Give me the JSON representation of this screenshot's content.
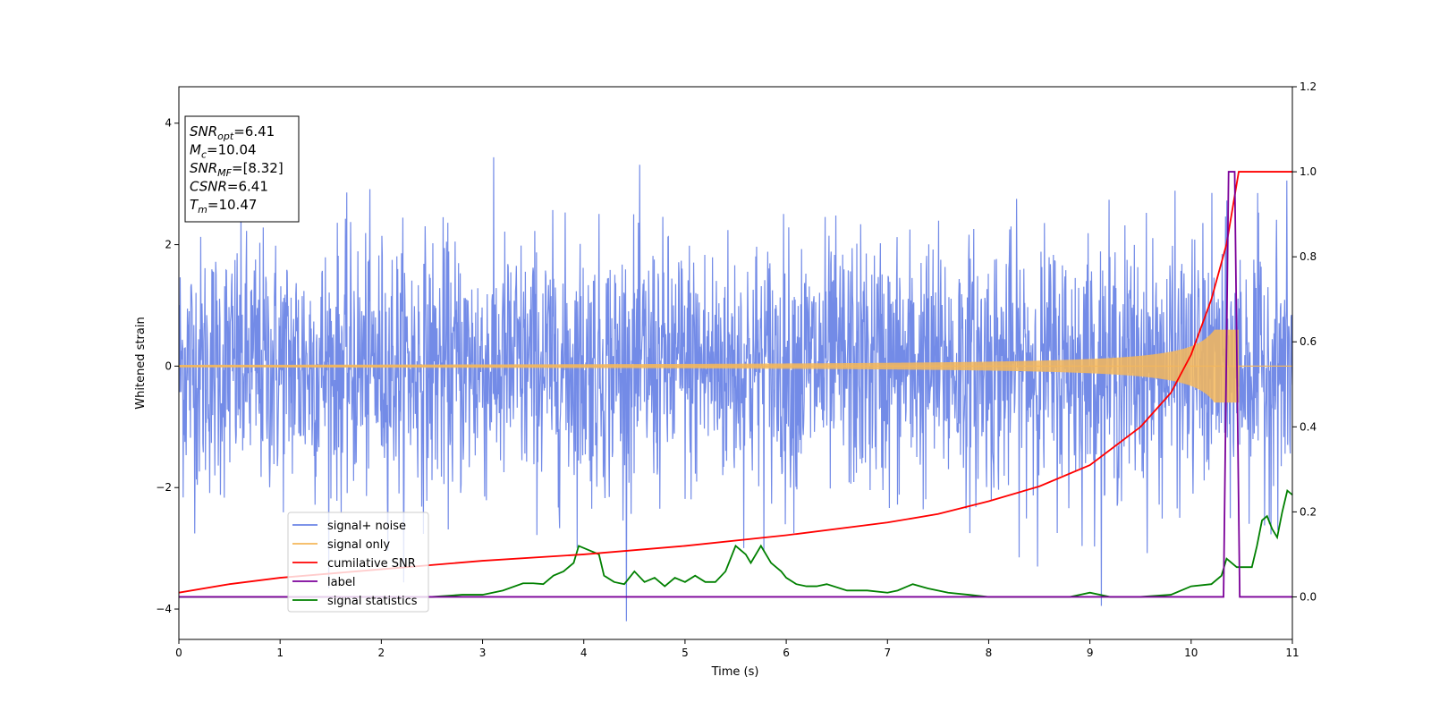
{
  "chart_data": {
    "type": "line",
    "title": "",
    "xlabel": "Time (s)",
    "ylabel": "Whitened strain",
    "xlim": [
      0,
      11
    ],
    "ylim": [
      -4.5,
      4.6
    ],
    "y2lim": [
      -0.1,
      1.2
    ],
    "x_ticks": [
      "0",
      "1",
      "2",
      "3",
      "4",
      "5",
      "6",
      "7",
      "8",
      "9",
      "10",
      "11"
    ],
    "y_ticks": [
      "−4",
      "−2",
      "0",
      "2",
      "4"
    ],
    "y2_ticks": [
      "0.0",
      "0.2",
      "0.4",
      "0.6",
      "0.8",
      "1.0",
      "1.2"
    ],
    "grid": false,
    "legend_placement": "lower-left",
    "annotation": {
      "lines": [
        {
          "base": "SNR",
          "sub": "opt",
          "rest": "=6.41"
        },
        {
          "base": "M",
          "sub": "c",
          "rest": "=10.04"
        },
        {
          "base": "SNR",
          "sub": "MF",
          "rest": "=[8.32]"
        },
        {
          "base": "CSNR",
          "sub": "",
          "rest": "=6.41"
        },
        {
          "base": "T",
          "sub": "m",
          "rest": "=10.47"
        }
      ]
    },
    "series": [
      {
        "name": "signal+ noise",
        "axis": "left",
        "color": "#6b85e6",
        "description_values": "white noise, std ~1.0, peaks up to ~4.2"
      },
      {
        "name": "signal only",
        "axis": "left",
        "color": "#f5b75a",
        "chirp": {
          "start_amplitude": 0.02,
          "merger_time": 10.47,
          "peak_amplitude": 0.6,
          "end_time": 10.47
        }
      },
      {
        "name": "cumilative SNR",
        "axis": "right",
        "color": "#ff0000",
        "x": [
          0,
          0.5,
          1,
          2,
          3,
          4,
          5,
          6,
          7,
          7.5,
          8,
          8.5,
          9,
          9.5,
          9.8,
          10.0,
          10.2,
          10.35,
          10.47,
          11
        ],
        "values": [
          0.01,
          0.03,
          0.045,
          0.065,
          0.085,
          0.1,
          0.12,
          0.145,
          0.175,
          0.195,
          0.225,
          0.26,
          0.31,
          0.4,
          0.48,
          0.57,
          0.7,
          0.83,
          1.0,
          1.0
        ]
      },
      {
        "name": "label",
        "axis": "right",
        "color": "#7b0099",
        "x": [
          0,
          10.32,
          10.37,
          10.43,
          10.48,
          11
        ],
        "values": [
          0,
          0,
          1,
          1,
          0,
          0
        ]
      },
      {
        "name": "signal statistics",
        "axis": "right",
        "color": "#008000",
        "x": [
          0,
          0.5,
          1,
          1.5,
          2,
          2.5,
          2.8,
          3.0,
          3.2,
          3.4,
          3.5,
          3.6,
          3.7,
          3.8,
          3.9,
          3.95,
          4.05,
          4.15,
          4.2,
          4.3,
          4.4,
          4.5,
          4.6,
          4.7,
          4.8,
          4.9,
          5.0,
          5.1,
          5.2,
          5.3,
          5.4,
          5.5,
          5.6,
          5.65,
          5.75,
          5.85,
          5.95,
          6.0,
          6.1,
          6.2,
          6.3,
          6.4,
          6.6,
          6.8,
          7.0,
          7.1,
          7.25,
          7.4,
          7.6,
          7.8,
          8.0,
          8.5,
          8.8,
          8.9,
          9.0,
          9.2,
          9.5,
          9.8,
          10.0,
          10.2,
          10.3,
          10.35,
          10.45,
          10.6,
          10.65,
          10.7,
          10.75,
          10.8,
          10.85,
          10.9,
          10.95,
          11.0
        ],
        "values": [
          0.0,
          0.0,
          0.0,
          0.0,
          0.0,
          0.0,
          0.005,
          0.005,
          0.015,
          0.032,
          0.032,
          0.03,
          0.05,
          0.06,
          0.08,
          0.12,
          0.11,
          0.1,
          0.05,
          0.035,
          0.03,
          0.06,
          0.035,
          0.045,
          0.025,
          0.045,
          0.035,
          0.05,
          0.035,
          0.035,
          0.06,
          0.12,
          0.1,
          0.08,
          0.12,
          0.08,
          0.06,
          0.045,
          0.03,
          0.025,
          0.025,
          0.03,
          0.015,
          0.015,
          0.01,
          0.015,
          0.03,
          0.02,
          0.01,
          0.005,
          0.0,
          0.0,
          0.0,
          0.005,
          0.01,
          0.0,
          0.0,
          0.005,
          0.025,
          0.03,
          0.05,
          0.09,
          0.07,
          0.07,
          0.12,
          0.18,
          0.19,
          0.16,
          0.14,
          0.2,
          0.25,
          0.24
        ]
      }
    ],
    "legend": [
      "signal+ noise",
      "signal only",
      "cumilative SNR",
      "label",
      "signal statistics"
    ]
  }
}
